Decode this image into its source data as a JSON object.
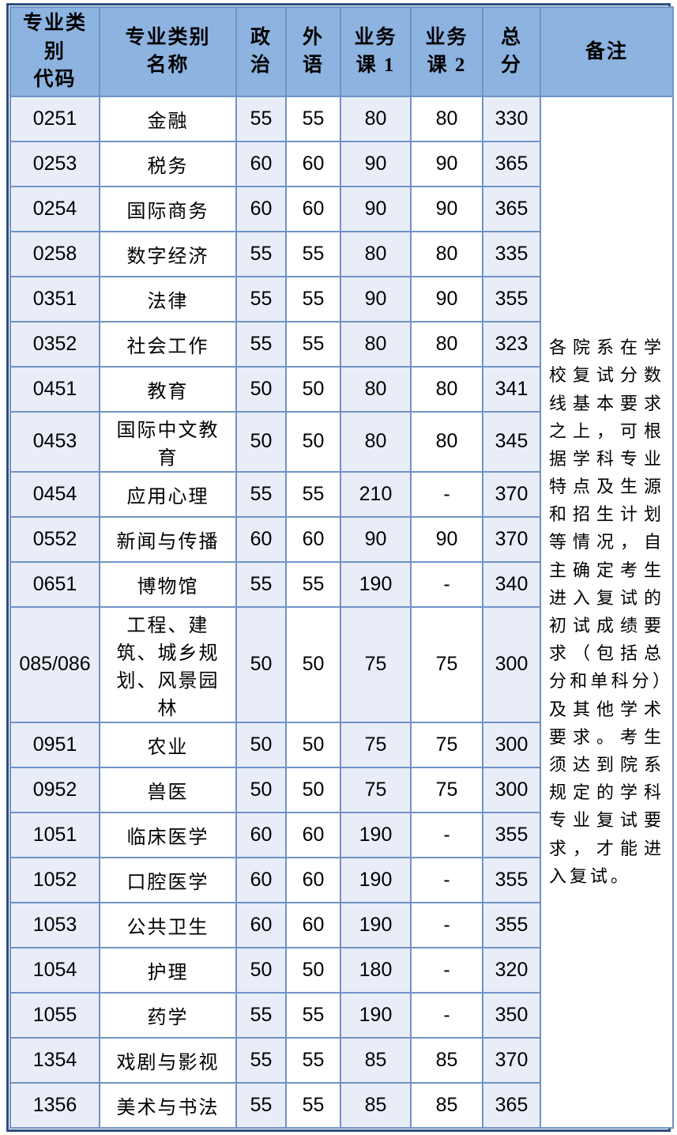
{
  "table": {
    "columns": [
      {
        "id": "code",
        "label": "专业类别\n代码"
      },
      {
        "id": "name",
        "label": "专业类别\n名称"
      },
      {
        "id": "politics",
        "label": "政\n治"
      },
      {
        "id": "foreign",
        "label": "外\n语"
      },
      {
        "id": "course1",
        "label": "业务\n课 1"
      },
      {
        "id": "course2",
        "label": "业务\n课 2"
      },
      {
        "id": "total",
        "label": "总\n分"
      },
      {
        "id": "remark",
        "label": "备注"
      }
    ],
    "rows": [
      [
        "0251",
        "金融",
        "55",
        "55",
        "80",
        "80",
        "330"
      ],
      [
        "0253",
        "税务",
        "60",
        "60",
        "90",
        "90",
        "365"
      ],
      [
        "0254",
        "国际商务",
        "60",
        "60",
        "90",
        "90",
        "365"
      ],
      [
        "0258",
        "数字经济",
        "55",
        "55",
        "80",
        "80",
        "335"
      ],
      [
        "0351",
        "法律",
        "55",
        "55",
        "90",
        "90",
        "355"
      ],
      [
        "0352",
        "社会工作",
        "55",
        "55",
        "80",
        "80",
        "323"
      ],
      [
        "0451",
        "教育",
        "50",
        "50",
        "80",
        "80",
        "341"
      ],
      [
        "0453",
        "国际中文教育",
        "50",
        "50",
        "80",
        "80",
        "345"
      ],
      [
        "0454",
        "应用心理",
        "55",
        "55",
        "210",
        "-",
        "370"
      ],
      [
        "0552",
        "新闻与传播",
        "60",
        "60",
        "90",
        "90",
        "370"
      ],
      [
        "0651",
        "博物馆",
        "55",
        "55",
        "190",
        "-",
        "340"
      ],
      [
        "085/086",
        "工程、建筑、城乡规划、风景园林",
        "50",
        "50",
        "75",
        "75",
        "300"
      ],
      [
        "0951",
        "农业",
        "50",
        "50",
        "75",
        "75",
        "300"
      ],
      [
        "0952",
        "兽医",
        "50",
        "50",
        "75",
        "75",
        "300"
      ],
      [
        "1051",
        "临床医学",
        "60",
        "60",
        "190",
        "-",
        "355"
      ],
      [
        "1052",
        "口腔医学",
        "60",
        "60",
        "190",
        "-",
        "355"
      ],
      [
        "1053",
        "公共卫生",
        "60",
        "60",
        "190",
        "-",
        "355"
      ],
      [
        "1054",
        "护理",
        "50",
        "50",
        "180",
        "-",
        "320"
      ],
      [
        "1055",
        "药学",
        "55",
        "55",
        "190",
        "-",
        "350"
      ],
      [
        "1354",
        "戏剧与影视",
        "55",
        "55",
        "85",
        "85",
        "370"
      ],
      [
        "1356",
        "美术与书法",
        "55",
        "55",
        "85",
        "85",
        "365"
      ]
    ],
    "remark_text": "各院系在学校复试分数线基本要求之上，可根据学科专业特点及生源和招生计划等情况，自主确定考生进入复试的初试成绩要求（包括总分和单科分）及其他学术要求。考生须达到院系规定的学科专业复试要求，才能进入复试。",
    "colors": {
      "header_bg": "#8db3e0",
      "band_bg": "#e9edf7",
      "inner_border": "#6f93c6",
      "outer_border": "#2e4e7e",
      "text": "#000000"
    }
  }
}
